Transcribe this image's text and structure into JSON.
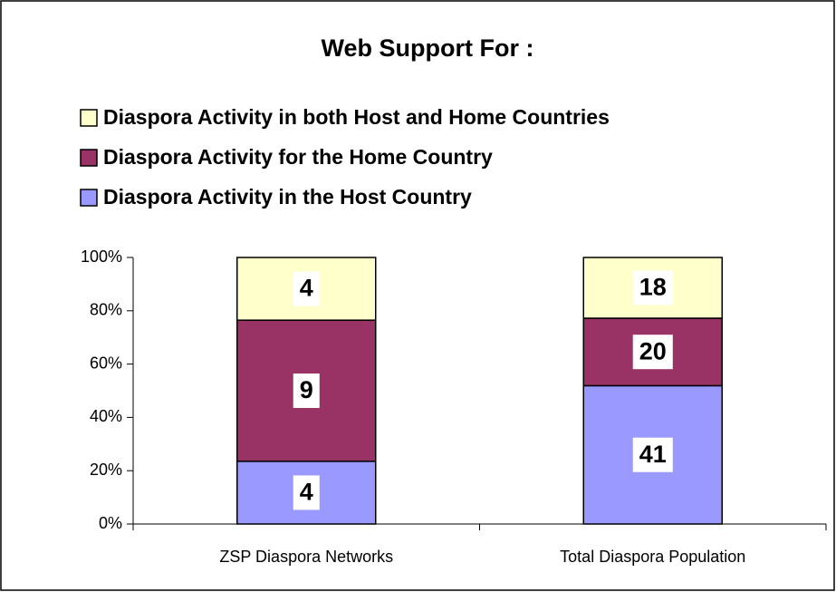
{
  "chart_data": {
    "type": "bar",
    "stacking": "percent",
    "title": "Web Support For :",
    "categories": [
      "ZSP Diaspora Networks",
      "Total Diaspora Population"
    ],
    "series": [
      {
        "name": "Diaspora Activity in the Host Country",
        "color": "#9999ff",
        "values": [
          4,
          41
        ]
      },
      {
        "name": "Diaspora Activity for the Home Country",
        "color": "#993366",
        "values": [
          9,
          20
        ]
      },
      {
        "name": "Diaspora Activity in both Host and Home Countries",
        "color": "#ffffcc",
        "values": [
          4,
          18
        ]
      }
    ],
    "ylim": [
      0,
      100
    ],
    "yticks": [
      {
        "value": 0,
        "label": "0%"
      },
      {
        "value": 20,
        "label": "20%"
      },
      {
        "value": 40,
        "label": "40%"
      },
      {
        "value": 60,
        "label": "60%"
      },
      {
        "value": 80,
        "label": "80%"
      },
      {
        "value": 100,
        "label": "100%"
      }
    ],
    "grid": false
  }
}
